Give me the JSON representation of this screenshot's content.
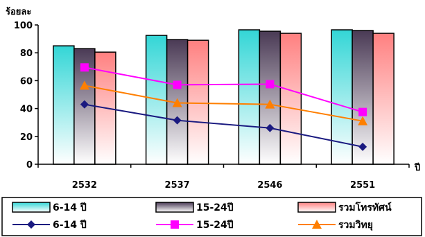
{
  "chart_data": {
    "type": "bar+line",
    "title": "",
    "ylabel": "ร้อยละ",
    "xlabel": "ปี",
    "ylim": [
      0,
      100
    ],
    "yticks": [
      0,
      20,
      40,
      60,
      80,
      100
    ],
    "categories": [
      "2532",
      "2537",
      "2546",
      "2551"
    ],
    "bar_series": [
      {
        "name": "6-14 ปี",
        "values": [
          85,
          92.5,
          96.5,
          96.5
        ],
        "color": "#33d6d6"
      },
      {
        "name": "15-24ปี",
        "values": [
          83,
          89.5,
          95.5,
          96
        ],
        "color": "#4a3a55"
      },
      {
        "name": "รวมโทรทัศน์",
        "values": [
          80.5,
          89,
          94,
          94
        ],
        "color": "#ff8080"
      }
    ],
    "line_series": [
      {
        "name": "6-14 ปี",
        "values": [
          43,
          31.5,
          26,
          12.5
        ],
        "color": "#1a1a80",
        "marker": "diamond"
      },
      {
        "name": "15-24ปี",
        "values": [
          69.5,
          57,
          57.5,
          37.5
        ],
        "color": "#ff00ff",
        "marker": "square"
      },
      {
        "name": "รวมวิทยุ",
        "values": [
          56.5,
          44,
          43,
          31
        ],
        "color": "#ff7f00",
        "marker": "triangle"
      }
    ],
    "legend_position": "bottom",
    "grid": false
  }
}
